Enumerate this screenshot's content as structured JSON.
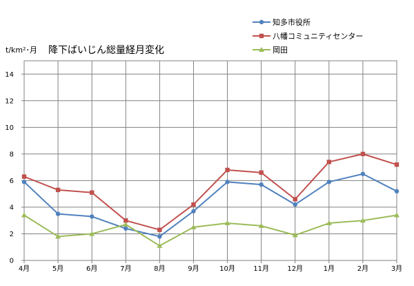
{
  "chart_data": {
    "type": "line",
    "title": "降下ばいじん総量経月変化",
    "ylabel": "t/km²･月",
    "xlabel": "",
    "categories": [
      "4月",
      "5月",
      "6月",
      "7月",
      "8月",
      "9月",
      "10月",
      "11月",
      "12月",
      "1月",
      "2月",
      "3月"
    ],
    "ylim": [
      0,
      15
    ],
    "yticks": [
      0,
      2,
      4,
      6,
      8,
      10,
      12,
      14
    ],
    "grid": true,
    "legend_position": "top-right",
    "series": [
      {
        "name": "知多市役所",
        "color": "#4f81bd",
        "marker": "circle",
        "values": [
          5.9,
          3.5,
          3.3,
          2.4,
          1.8,
          3.7,
          5.9,
          5.7,
          4.2,
          5.9,
          6.5,
          5.2
        ]
      },
      {
        "name": "八幡コミュニティセンター",
        "color": "#c0504d",
        "marker": "square",
        "values": [
          6.3,
          5.3,
          5.1,
          3.0,
          2.3,
          4.2,
          6.8,
          6.6,
          4.6,
          7.4,
          8.0,
          7.2
        ]
      },
      {
        "name": "岡田",
        "color": "#9bbb59",
        "marker": "triangle",
        "values": [
          3.4,
          1.8,
          2.0,
          2.7,
          1.1,
          2.5,
          2.8,
          2.6,
          1.9,
          2.8,
          3.0,
          3.4
        ]
      }
    ]
  }
}
